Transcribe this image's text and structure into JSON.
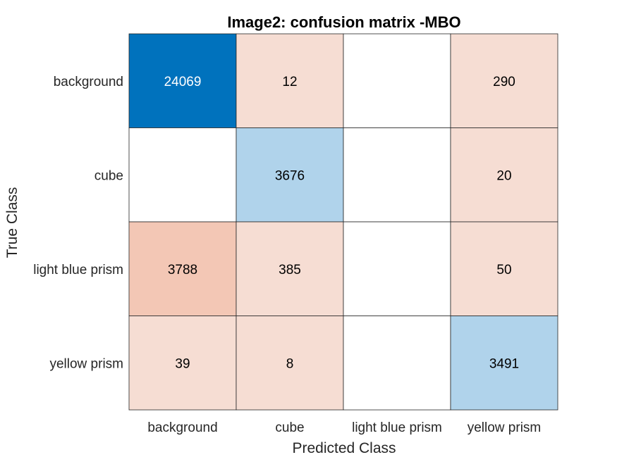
{
  "chart_data": {
    "type": "heatmap",
    "title": "Image2: confusion matrix -MBO",
    "xlabel": "Predicted Class",
    "ylabel": "True Class",
    "x_categories": [
      "background",
      "cube",
      "light blue prism",
      "yellow prism"
    ],
    "y_categories": [
      "background",
      "cube",
      "light blue prism",
      "yellow prism"
    ],
    "values": [
      [
        24069,
        12,
        null,
        290
      ],
      [
        null,
        3676,
        null,
        20
      ],
      [
        3788,
        385,
        null,
        50
      ],
      [
        39,
        8,
        null,
        3491
      ]
    ],
    "colors": {
      "diagonal_strong": "#0072BD",
      "diagonal_light": "#B0D3EB",
      "offdiag_strong": "#F3C7B5",
      "offdiag_light": "#F6DDD3",
      "empty": "#FFFFFF",
      "grid": "#262626"
    },
    "grid": true
  }
}
